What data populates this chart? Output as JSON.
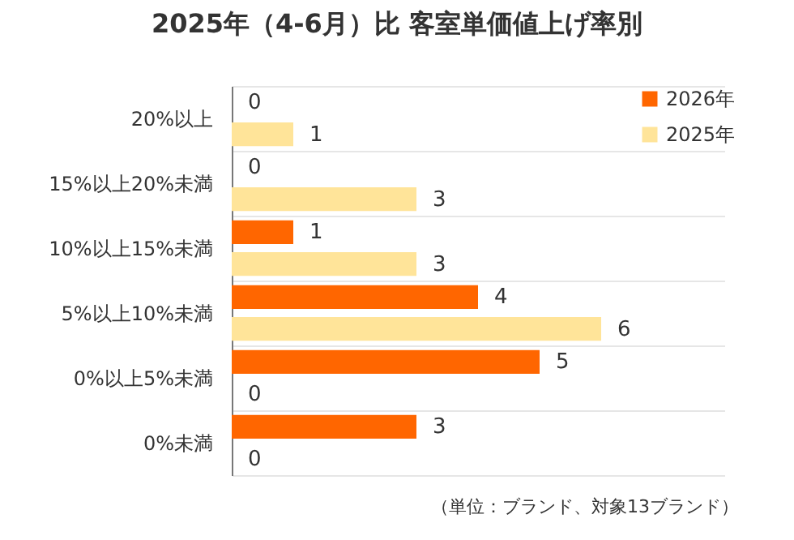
{
  "chart_data": {
    "type": "bar",
    "orientation": "horizontal",
    "title": "2025年（4-6月）比 客室単価値上げ率別",
    "categories": [
      "20%以上",
      "15%以上20%未満",
      "10%以上15%未満",
      "5%以上10%未満",
      "0%以上5%未満",
      "0%未満"
    ],
    "series": [
      {
        "name": "2026年",
        "color": "#ff6600",
        "values": [
          0,
          0,
          1,
          4,
          5,
          3
        ]
      },
      {
        "name": "2025年",
        "color": "#ffe499",
        "values": [
          1,
          3,
          3,
          6,
          0,
          0
        ]
      }
    ],
    "xlim": [
      0,
      8
    ],
    "data_labels": true,
    "grid": "y",
    "legend": "top right",
    "annotations": [
      "（単位：ブランド、対象13ブランド）"
    ]
  }
}
